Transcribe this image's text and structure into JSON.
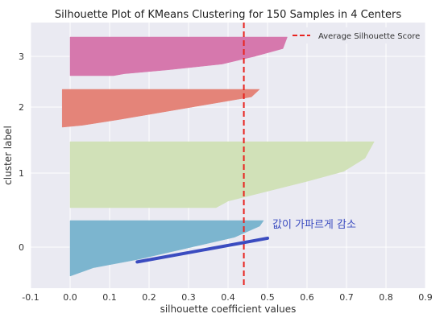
{
  "chart_data": {
    "type": "area",
    "title": "Silhouette Plot of KMeans Clustering for 150 Samples in 4 Centers",
    "xlabel": "silhouette coefficient values",
    "ylabel": "cluster label",
    "xlim": [
      -0.1,
      0.9
    ],
    "xticks": [
      "-0.1",
      "0.0",
      "0.1",
      "0.2",
      "0.3",
      "0.4",
      "0.5",
      "0.6",
      "0.7",
      "0.8",
      "0.9"
    ],
    "yticks": [
      "0",
      "1",
      "2",
      "3"
    ],
    "grid": true,
    "legend": {
      "position": "top-right",
      "entries": [
        "Average Silhouette Score"
      ]
    },
    "average_silhouette_score": 0.44,
    "clusters": [
      {
        "label": "0",
        "color": "#7cb5cf",
        "max": 0.49,
        "min": 0.0,
        "samples": 37
      },
      {
        "label": "1",
        "color": "#d1e1b8",
        "max": 0.77,
        "min": 0.0,
        "samples": 50
      },
      {
        "label": "2",
        "color": "#e48479",
        "max": 0.49,
        "min": -0.02,
        "samples": 29
      },
      {
        "label": "3",
        "color": "#d678ad",
        "max": 0.55,
        "min": 0.0,
        "samples": 34
      }
    ],
    "annotation": {
      "text": "값이 가파르게 감소",
      "color": "#3b4cc0",
      "arrow_from": [
        0.17,
        -0.2
      ],
      "arrow_to": [
        0.5,
        0.12
      ]
    },
    "avg_line_color": "#e8231f"
  }
}
